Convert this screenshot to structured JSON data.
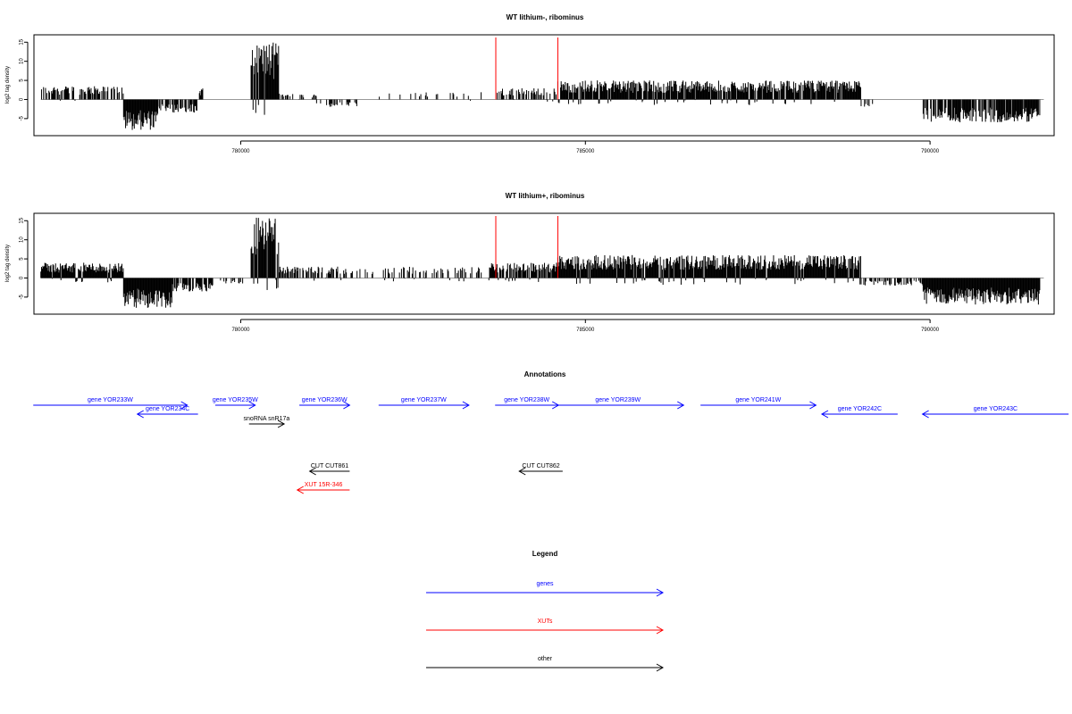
{
  "chart_data": [
    {
      "type": "bar",
      "title": "WT lithium-, ribominus",
      "ylabel": "log2 tag density",
      "ylim": [
        -9,
        16
      ],
      "yticks": [
        -5,
        0,
        5,
        10,
        15
      ],
      "xlim": [
        777000,
        791800
      ],
      "xticks": [
        780000,
        785000,
        790000
      ],
      "markers": [
        783700,
        784600
      ],
      "segments": [
        {
          "start": 777100,
          "end": 778300,
          "level": 3.5,
          "density": 0.55
        },
        {
          "start": 778300,
          "end": 778800,
          "level": -8,
          "density": 1.0
        },
        {
          "start": 778800,
          "end": 779400,
          "level": -3.5,
          "density": 0.6
        },
        {
          "start": 779400,
          "end": 779450,
          "level": 3,
          "density": 1.0
        },
        {
          "start": 780150,
          "end": 780550,
          "level": 15,
          "density": 1.0
        },
        {
          "start": 780550,
          "end": 781100,
          "level": 1.5,
          "density": 0.35
        },
        {
          "start": 781100,
          "end": 781700,
          "level": -2,
          "density": 0.25
        },
        {
          "start": 782000,
          "end": 783500,
          "level": 2,
          "density": 0.12
        },
        {
          "start": 783700,
          "end": 784600,
          "level": 3,
          "density": 0.5
        },
        {
          "start": 784600,
          "end": 789000,
          "level": 5,
          "density": 0.95
        },
        {
          "start": 789000,
          "end": 789200,
          "level": -2,
          "density": 0.3
        },
        {
          "start": 789900,
          "end": 791600,
          "level": -6,
          "density": 0.85
        }
      ]
    },
    {
      "type": "bar",
      "title": "WT lithium+, ribominus",
      "ylabel": "log2 tag density",
      "ylim": [
        -9,
        16
      ],
      "yticks": [
        -5,
        0,
        5,
        10,
        15
      ],
      "xlim": [
        777000,
        791800
      ],
      "xticks": [
        780000,
        785000,
        790000
      ],
      "markers": [
        783700,
        784600
      ],
      "segments": [
        {
          "start": 777100,
          "end": 778300,
          "level": 4,
          "density": 1.0
        },
        {
          "start": 778300,
          "end": 779000,
          "level": -8,
          "density": 1.0
        },
        {
          "start": 779000,
          "end": 779600,
          "level": -3.5,
          "density": 0.7
        },
        {
          "start": 779600,
          "end": 780100,
          "level": -1.5,
          "density": 0.3
        },
        {
          "start": 780150,
          "end": 780550,
          "level": 16,
          "density": 1.0
        },
        {
          "start": 780550,
          "end": 781700,
          "level": 3,
          "density": 0.5
        },
        {
          "start": 781700,
          "end": 783500,
          "level": 3,
          "density": 0.3
        },
        {
          "start": 783600,
          "end": 784600,
          "level": 4,
          "density": 0.8
        },
        {
          "start": 784600,
          "end": 789000,
          "level": 6,
          "density": 1.0
        },
        {
          "start": 789000,
          "end": 789900,
          "level": -2,
          "density": 0.4
        },
        {
          "start": 789900,
          "end": 791600,
          "level": -7,
          "density": 1.0
        }
      ]
    }
  ],
  "annotations": {
    "title": "Annotations",
    "features": [
      {
        "label": "gene YOR233W",
        "start": 776990,
        "end": 779225,
        "row": 0,
        "strand": "+",
        "color": "#0000ff"
      },
      {
        "label": "gene YOR234C",
        "start": 778500,
        "end": 779380,
        "row": 1,
        "strand": "-",
        "color": "#0000ff"
      },
      {
        "label": "gene YOR235W",
        "start": 779630,
        "end": 780210,
        "row": 0,
        "strand": "+",
        "color": "#0000ff"
      },
      {
        "label": "gene YOR236W",
        "start": 780850,
        "end": 781580,
        "row": 0,
        "strand": "+",
        "color": "#0000ff"
      },
      {
        "label": "gene YOR237W",
        "start": 782000,
        "end": 783310,
        "row": 0,
        "strand": "+",
        "color": "#0000ff"
      },
      {
        "label": "gene YOR238W",
        "start": 783690,
        "end": 784610,
        "row": 0,
        "strand": "+",
        "color": "#0000ff"
      },
      {
        "label": "gene YOR239W",
        "start": 784520,
        "end": 786425,
        "row": 0,
        "strand": "+",
        "color": "#0000ff"
      },
      {
        "label": "gene YOR241W",
        "start": 786670,
        "end": 788345,
        "row": 0,
        "strand": "+",
        "color": "#0000ff"
      },
      {
        "label": "gene YOR242C",
        "start": 788430,
        "end": 789530,
        "row": 1,
        "strand": "-",
        "color": "#0000ff"
      },
      {
        "label": "gene YOR243C",
        "start": 789890,
        "end": 792010,
        "row": 1,
        "strand": "-",
        "color": "#0000ff"
      },
      {
        "label": "snoRNA snR17a",
        "start": 780120,
        "end": 780630,
        "row": 2,
        "strand": "+",
        "color": "#000000"
      },
      {
        "label": "CUT CUT861",
        "start": 781000,
        "end": 781580,
        "row": 3,
        "strand": "-",
        "color": "#000000"
      },
      {
        "label": "CUT CUT862",
        "start": 784040,
        "end": 784670,
        "row": 3,
        "strand": "-",
        "color": "#000000"
      },
      {
        "label": "XUT 15R-346",
        "start": 780820,
        "end": 781580,
        "row": 4,
        "strand": "-",
        "color": "#ff0000"
      }
    ]
  },
  "legend": {
    "title": "Legend",
    "items": [
      {
        "label": "genes",
        "color": "#0000ff"
      },
      {
        "label": "XUTs",
        "color": "#ff0000"
      },
      {
        "label": "other",
        "color": "#000000"
      }
    ]
  }
}
